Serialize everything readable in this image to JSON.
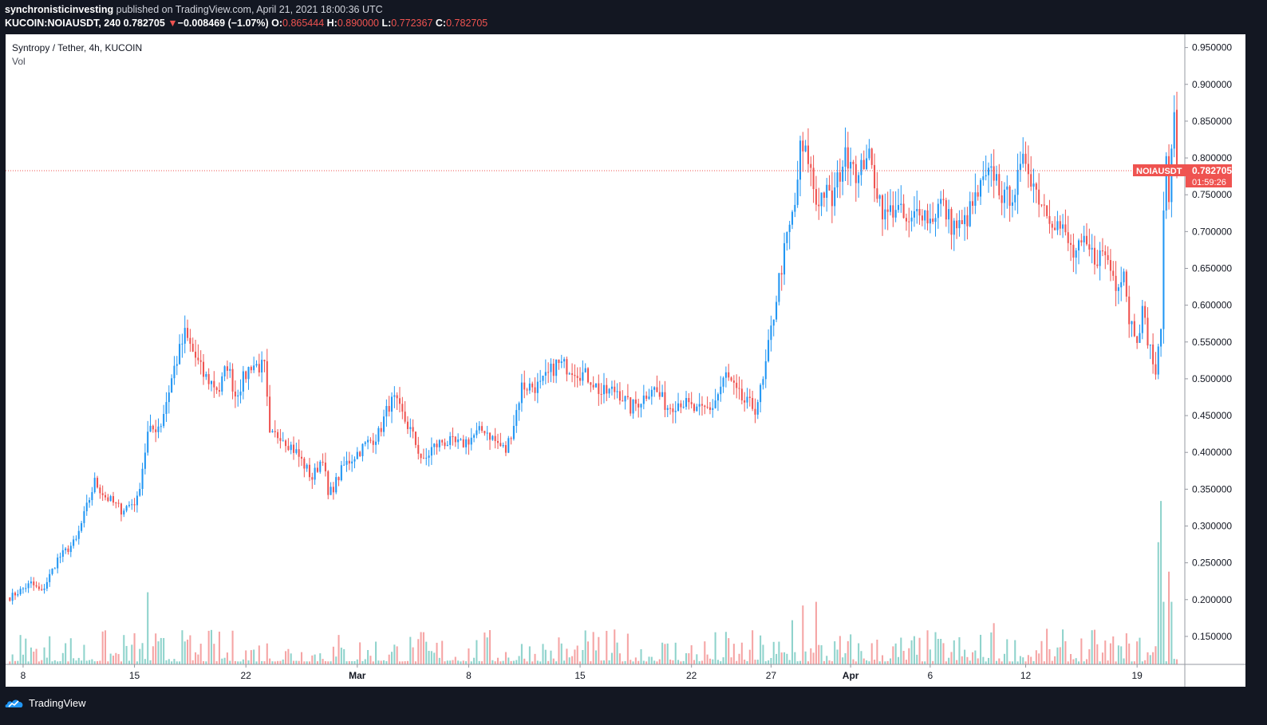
{
  "header": {
    "author": "synchronisticinvesting",
    "published_text": "published on TradingView.com, April 21, 2021 18:00:36 UTC",
    "symbol": "KUCOIN:NOIAUSDT, 240",
    "last_price": "0.782705",
    "change_arrow": "▼",
    "change": "−0.008469 (−1.07%)",
    "o_label": "O:",
    "o_value": "0.865444",
    "h_label": "H:",
    "h_value": "0.890000",
    "l_label": "L:",
    "l_value": "0.772367",
    "c_label": "C:",
    "c_value": "0.782705"
  },
  "legend": {
    "title": "Syntropy / Tether, 4h, KUCOIN",
    "volume": "Vol"
  },
  "price_tag": {
    "symbol": "NOIAUSDT",
    "price": "0.782705",
    "countdown": "01:59:26"
  },
  "footer": {
    "brand": "TradingView"
  },
  "colors": {
    "up": "#2196f3",
    "down": "#ef5350",
    "vol_up": "#8fd3cc",
    "vol_down": "#f5a4a4",
    "background": "#131722"
  },
  "chart_data": {
    "type": "candlestick",
    "title": "Syntropy / Tether, 4h, KUCOIN",
    "ylim": [
      0.112,
      0.968
    ],
    "yticks": [
      "0.950000",
      "0.900000",
      "0.850000",
      "0.800000",
      "0.750000",
      "0.700000",
      "0.650000",
      "0.600000",
      "0.550000",
      "0.500000",
      "0.450000",
      "0.400000",
      "0.350000",
      "0.300000",
      "0.250000",
      "0.200000",
      "0.150000"
    ],
    "x_start": "2021-02-07T00:00",
    "x_end": "2021-04-22T00:00",
    "x_ticks": [
      {
        "date": "2021-02-08T00:00",
        "label": "8"
      },
      {
        "date": "2021-02-15T00:00",
        "label": "15"
      },
      {
        "date": "2021-02-22T00:00",
        "label": "22"
      },
      {
        "date": "2021-03-01T00:00",
        "label": "Mar"
      },
      {
        "date": "2021-03-08T00:00",
        "label": "8"
      },
      {
        "date": "2021-03-15T00:00",
        "label": "15"
      },
      {
        "date": "2021-03-22T00:00",
        "label": "22"
      },
      {
        "date": "2021-03-27T00:00",
        "label": "27"
      },
      {
        "date": "2021-04-01T00:00",
        "label": "Apr"
      },
      {
        "date": "2021-04-06T00:00",
        "label": "6"
      },
      {
        "date": "2021-04-12T00:00",
        "label": "12"
      },
      {
        "date": "2021-04-19T00:00",
        "label": "19"
      }
    ],
    "last_price": 0.782705,
    "volume_scale_max": 0.334,
    "close_path": [
      {
        "date": "2021-02-07T04:00",
        "close": 0.203
      },
      {
        "date": "2021-02-08T12:00",
        "close": 0.222
      },
      {
        "date": "2021-02-09T04:00",
        "close": 0.21
      },
      {
        "date": "2021-02-10T04:00",
        "close": 0.255
      },
      {
        "date": "2021-02-11T08:00",
        "close": 0.28
      },
      {
        "date": "2021-02-12T12:00",
        "close": 0.36
      },
      {
        "date": "2021-02-13T04:00",
        "close": 0.34
      },
      {
        "date": "2021-02-14T04:00",
        "close": 0.322
      },
      {
        "date": "2021-02-15T04:00",
        "close": 0.335
      },
      {
        "date": "2021-02-15T20:00",
        "close": 0.425
      },
      {
        "date": "2021-02-16T16:00",
        "close": 0.44
      },
      {
        "date": "2021-02-17T12:00",
        "close": 0.515
      },
      {
        "date": "2021-02-18T04:00",
        "close": 0.56
      },
      {
        "date": "2021-02-19T08:00",
        "close": 0.505
      },
      {
        "date": "2021-02-20T08:00",
        "close": 0.485
      },
      {
        "date": "2021-02-20T20:00",
        "close": 0.52
      },
      {
        "date": "2021-02-21T08:00",
        "close": 0.478
      },
      {
        "date": "2021-02-22T08:00",
        "close": 0.52
      },
      {
        "date": "2021-02-23T04:00",
        "close": 0.515
      },
      {
        "date": "2021-02-23T12:00",
        "close": 0.42
      },
      {
        "date": "2021-02-24T04:00",
        "close": 0.425
      },
      {
        "date": "2021-02-25T04:00",
        "close": 0.4
      },
      {
        "date": "2021-02-26T04:00",
        "close": 0.365
      },
      {
        "date": "2021-02-26T20:00",
        "close": 0.395
      },
      {
        "date": "2021-02-27T04:00",
        "close": 0.34
      },
      {
        "date": "2021-02-27T16:00",
        "close": 0.36
      },
      {
        "date": "2021-02-28T04:00",
        "close": 0.382
      },
      {
        "date": "2021-03-01T12:00",
        "close": 0.41
      },
      {
        "date": "2021-03-02T08:00",
        "close": 0.425
      },
      {
        "date": "2021-03-03T00:00",
        "close": 0.465
      },
      {
        "date": "2021-03-03T08:00",
        "close": 0.47
      },
      {
        "date": "2021-03-04T08:00",
        "close": 0.43
      },
      {
        "date": "2021-03-05T04:00",
        "close": 0.385
      },
      {
        "date": "2021-03-05T16:00",
        "close": 0.405
      },
      {
        "date": "2021-03-06T08:00",
        "close": 0.415
      },
      {
        "date": "2021-03-07T12:00",
        "close": 0.41
      },
      {
        "date": "2021-03-08T04:00",
        "close": 0.42
      },
      {
        "date": "2021-03-09T00:00",
        "close": 0.432
      },
      {
        "date": "2021-03-09T16:00",
        "close": 0.415
      },
      {
        "date": "2021-03-10T08:00",
        "close": 0.402
      },
      {
        "date": "2021-03-10T20:00",
        "close": 0.44
      },
      {
        "date": "2021-03-11T08:00",
        "close": 0.49
      },
      {
        "date": "2021-03-12T12:00",
        "close": 0.49
      },
      {
        "date": "2021-03-13T12:00",
        "close": 0.52
      },
      {
        "date": "2021-03-14T12:00",
        "close": 0.515
      },
      {
        "date": "2021-03-15T16:00",
        "close": 0.5
      },
      {
        "date": "2021-03-16T08:00",
        "close": 0.48
      },
      {
        "date": "2021-03-17T08:00",
        "close": 0.485
      },
      {
        "date": "2021-03-18T04:00",
        "close": 0.46
      },
      {
        "date": "2021-03-19T00:00",
        "close": 0.475
      },
      {
        "date": "2021-03-19T12:00",
        "close": 0.49
      },
      {
        "date": "2021-03-20T12:00",
        "close": 0.462
      },
      {
        "date": "2021-03-21T08:00",
        "close": 0.47
      },
      {
        "date": "2021-03-22T08:00",
        "close": 0.455
      },
      {
        "date": "2021-03-23T08:00",
        "close": 0.462
      },
      {
        "date": "2021-03-24T04:00",
        "close": 0.505
      },
      {
        "date": "2021-03-24T20:00",
        "close": 0.48
      },
      {
        "date": "2021-03-25T08:00",
        "close": 0.468
      },
      {
        "date": "2021-03-26T00:00",
        "close": 0.46
      },
      {
        "date": "2021-03-26T12:00",
        "close": 0.495
      },
      {
        "date": "2021-03-27T00:00",
        "close": 0.565
      },
      {
        "date": "2021-03-27T12:00",
        "close": 0.635
      },
      {
        "date": "2021-03-28T00:00",
        "close": 0.69
      },
      {
        "date": "2021-03-28T12:00",
        "close": 0.735
      },
      {
        "date": "2021-03-28T20:00",
        "close": 0.81
      },
      {
        "date": "2021-03-29T08:00",
        "close": 0.8
      },
      {
        "date": "2021-03-29T20:00",
        "close": 0.74
      },
      {
        "date": "2021-03-30T08:00",
        "close": 0.755
      },
      {
        "date": "2021-03-30T20:00",
        "close": 0.74
      },
      {
        "date": "2021-03-31T12:00",
        "close": 0.795
      },
      {
        "date": "2021-04-01T00:00",
        "close": 0.808
      },
      {
        "date": "2021-04-01T12:00",
        "close": 0.77
      },
      {
        "date": "2021-04-02T00:00",
        "close": 0.81
      },
      {
        "date": "2021-04-02T12:00",
        "close": 0.77
      },
      {
        "date": "2021-04-03T04:00",
        "close": 0.72
      },
      {
        "date": "2021-04-03T20:00",
        "close": 0.735
      },
      {
        "date": "2021-04-04T16:00",
        "close": 0.705
      },
      {
        "date": "2021-04-05T08:00",
        "close": 0.735
      },
      {
        "date": "2021-04-06T00:00",
        "close": 0.715
      },
      {
        "date": "2021-04-06T16:00",
        "close": 0.74
      },
      {
        "date": "2021-04-07T08:00",
        "close": 0.71
      },
      {
        "date": "2021-04-08T00:00",
        "close": 0.705
      },
      {
        "date": "2021-04-08T16:00",
        "close": 0.735
      },
      {
        "date": "2021-04-09T08:00",
        "close": 0.765
      },
      {
        "date": "2021-04-10T00:00",
        "close": 0.78
      },
      {
        "date": "2021-04-10T16:00",
        "close": 0.742
      },
      {
        "date": "2021-04-11T08:00",
        "close": 0.758
      },
      {
        "date": "2021-04-12T00:00",
        "close": 0.8
      },
      {
        "date": "2021-04-12T16:00",
        "close": 0.755
      },
      {
        "date": "2021-04-13T08:00",
        "close": 0.73
      },
      {
        "date": "2021-04-14T08:00",
        "close": 0.7
      },
      {
        "date": "2021-04-15T00:00",
        "close": 0.668
      },
      {
        "date": "2021-04-15T16:00",
        "close": 0.68
      },
      {
        "date": "2021-04-16T08:00",
        "close": 0.665
      },
      {
        "date": "2021-04-17T00:00",
        "close": 0.67
      },
      {
        "date": "2021-04-17T16:00",
        "close": 0.63
      },
      {
        "date": "2021-04-18T04:00",
        "close": 0.65
      },
      {
        "date": "2021-04-18T12:00",
        "close": 0.582
      },
      {
        "date": "2021-04-19T00:00",
        "close": 0.56
      },
      {
        "date": "2021-04-19T08:00",
        "close": 0.59
      },
      {
        "date": "2021-04-19T20:00",
        "close": 0.54
      },
      {
        "date": "2021-04-20T04:00",
        "close": 0.508
      },
      {
        "date": "2021-04-20T12:00",
        "close": 0.56
      },
      {
        "date": "2021-04-20T16:00",
        "close": 0.745
      },
      {
        "date": "2021-04-20T20:00",
        "close": 0.785
      },
      {
        "date": "2021-04-21T00:00",
        "close": 0.75
      },
      {
        "date": "2021-04-21T08:00",
        "close": 0.865
      },
      {
        "date": "2021-04-21T12:00",
        "close": 0.782705
      }
    ],
    "volume_spikes": [
      {
        "date": "2021-02-15T20:00",
        "volume": 0.21
      },
      {
        "date": "2021-03-28T08:00",
        "volume": 0.172
      },
      {
        "date": "2021-03-29T00:00",
        "volume": 0.192
      },
      {
        "date": "2021-03-29T20:00",
        "volume": 0.197
      },
      {
        "date": "2021-04-10T00:00",
        "volume": 0.168
      },
      {
        "date": "2021-04-20T08:00",
        "volume": 0.278
      },
      {
        "date": "2021-04-20T12:00",
        "volume": 0.334
      },
      {
        "date": "2021-04-20T16:00",
        "volume": 0.197
      },
      {
        "date": "2021-04-21T00:00",
        "volume": 0.238
      },
      {
        "date": "2021-04-21T04:00",
        "volume": 0.197
      }
    ]
  }
}
